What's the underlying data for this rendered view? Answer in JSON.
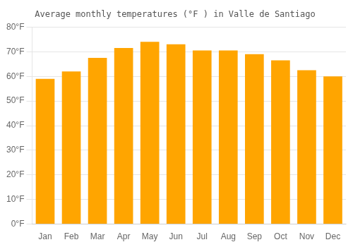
{
  "chart_data": {
    "type": "bar",
    "title": "Average monthly temperatures (°F ) in Valle de Santiago",
    "categories": [
      "Jan",
      "Feb",
      "Mar",
      "Apr",
      "May",
      "Jun",
      "Jul",
      "Aug",
      "Sep",
      "Oct",
      "Nov",
      "Dec"
    ],
    "values": [
      59,
      62,
      67.5,
      71.5,
      74,
      73,
      70.5,
      70.5,
      69,
      66.5,
      62.5,
      60
    ],
    "color": "#FFA500",
    "ylim": [
      0,
      80
    ],
    "yticks": [
      {
        "value": 0,
        "label": "0°F"
      },
      {
        "value": 10,
        "label": "10°F"
      },
      {
        "value": 20,
        "label": "20°F"
      },
      {
        "value": 30,
        "label": "30°F"
      },
      {
        "value": 40,
        "label": "40°F"
      },
      {
        "value": 50,
        "label": "50°F"
      },
      {
        "value": 60,
        "label": "60°F"
      },
      {
        "value": 70,
        "label": "70°F"
      },
      {
        "value": 80,
        "label": "80°F"
      }
    ],
    "grid": true
  }
}
